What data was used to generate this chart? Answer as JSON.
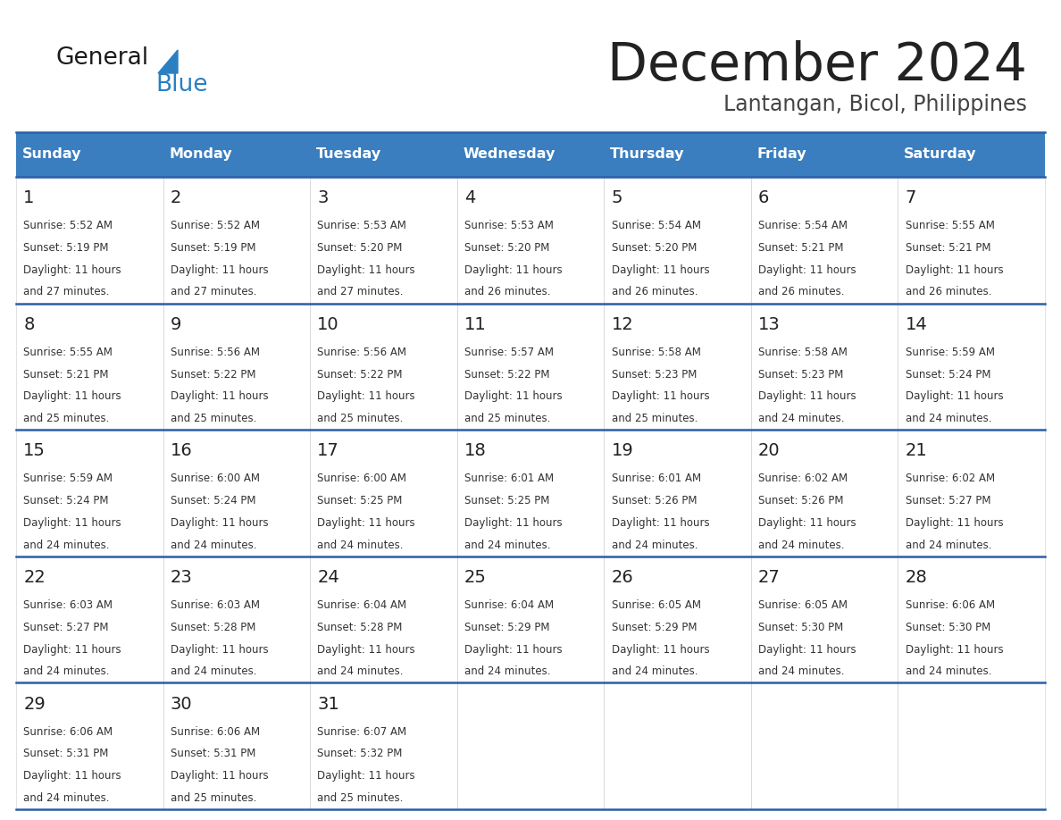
{
  "title": "December 2024",
  "subtitle": "Lantangan, Bicol, Philippines",
  "header_color": "#3a7ebf",
  "header_text_color": "#ffffff",
  "days_of_week": [
    "Sunday",
    "Monday",
    "Tuesday",
    "Wednesday",
    "Thursday",
    "Friday",
    "Saturday"
  ],
  "background_color": "#ffffff",
  "cell_bg_color": "#ffffff",
  "row_line_color": "#2a5fa5",
  "title_color": "#222222",
  "subtitle_color": "#444444",
  "logo_general_color": "#1a1a1a",
  "logo_blue_color": "#2a7fc2",
  "calendar": [
    [
      {
        "day": 1,
        "sunrise": "5:52 AM",
        "sunset": "5:19 PM",
        "daylight": "11 hours and 27 minutes."
      },
      {
        "day": 2,
        "sunrise": "5:52 AM",
        "sunset": "5:19 PM",
        "daylight": "11 hours and 27 minutes."
      },
      {
        "day": 3,
        "sunrise": "5:53 AM",
        "sunset": "5:20 PM",
        "daylight": "11 hours and 27 minutes."
      },
      {
        "day": 4,
        "sunrise": "5:53 AM",
        "sunset": "5:20 PM",
        "daylight": "11 hours and 26 minutes."
      },
      {
        "day": 5,
        "sunrise": "5:54 AM",
        "sunset": "5:20 PM",
        "daylight": "11 hours and 26 minutes."
      },
      {
        "day": 6,
        "sunrise": "5:54 AM",
        "sunset": "5:21 PM",
        "daylight": "11 hours and 26 minutes."
      },
      {
        "day": 7,
        "sunrise": "5:55 AM",
        "sunset": "5:21 PM",
        "daylight": "11 hours and 26 minutes."
      }
    ],
    [
      {
        "day": 8,
        "sunrise": "5:55 AM",
        "sunset": "5:21 PM",
        "daylight": "11 hours and 25 minutes."
      },
      {
        "day": 9,
        "sunrise": "5:56 AM",
        "sunset": "5:22 PM",
        "daylight": "11 hours and 25 minutes."
      },
      {
        "day": 10,
        "sunrise": "5:56 AM",
        "sunset": "5:22 PM",
        "daylight": "11 hours and 25 minutes."
      },
      {
        "day": 11,
        "sunrise": "5:57 AM",
        "sunset": "5:22 PM",
        "daylight": "11 hours and 25 minutes."
      },
      {
        "day": 12,
        "sunrise": "5:58 AM",
        "sunset": "5:23 PM",
        "daylight": "11 hours and 25 minutes."
      },
      {
        "day": 13,
        "sunrise": "5:58 AM",
        "sunset": "5:23 PM",
        "daylight": "11 hours and 24 minutes."
      },
      {
        "day": 14,
        "sunrise": "5:59 AM",
        "sunset": "5:24 PM",
        "daylight": "11 hours and 24 minutes."
      }
    ],
    [
      {
        "day": 15,
        "sunrise": "5:59 AM",
        "sunset": "5:24 PM",
        "daylight": "11 hours and 24 minutes."
      },
      {
        "day": 16,
        "sunrise": "6:00 AM",
        "sunset": "5:24 PM",
        "daylight": "11 hours and 24 minutes."
      },
      {
        "day": 17,
        "sunrise": "6:00 AM",
        "sunset": "5:25 PM",
        "daylight": "11 hours and 24 minutes."
      },
      {
        "day": 18,
        "sunrise": "6:01 AM",
        "sunset": "5:25 PM",
        "daylight": "11 hours and 24 minutes."
      },
      {
        "day": 19,
        "sunrise": "6:01 AM",
        "sunset": "5:26 PM",
        "daylight": "11 hours and 24 minutes."
      },
      {
        "day": 20,
        "sunrise": "6:02 AM",
        "sunset": "5:26 PM",
        "daylight": "11 hours and 24 minutes."
      },
      {
        "day": 21,
        "sunrise": "6:02 AM",
        "sunset": "5:27 PM",
        "daylight": "11 hours and 24 minutes."
      }
    ],
    [
      {
        "day": 22,
        "sunrise": "6:03 AM",
        "sunset": "5:27 PM",
        "daylight": "11 hours and 24 minutes."
      },
      {
        "day": 23,
        "sunrise": "6:03 AM",
        "sunset": "5:28 PM",
        "daylight": "11 hours and 24 minutes."
      },
      {
        "day": 24,
        "sunrise": "6:04 AM",
        "sunset": "5:28 PM",
        "daylight": "11 hours and 24 minutes."
      },
      {
        "day": 25,
        "sunrise": "6:04 AM",
        "sunset": "5:29 PM",
        "daylight": "11 hours and 24 minutes."
      },
      {
        "day": 26,
        "sunrise": "6:05 AM",
        "sunset": "5:29 PM",
        "daylight": "11 hours and 24 minutes."
      },
      {
        "day": 27,
        "sunrise": "6:05 AM",
        "sunset": "5:30 PM",
        "daylight": "11 hours and 24 minutes."
      },
      {
        "day": 28,
        "sunrise": "6:06 AM",
        "sunset": "5:30 PM",
        "daylight": "11 hours and 24 minutes."
      }
    ],
    [
      {
        "day": 29,
        "sunrise": "6:06 AM",
        "sunset": "5:31 PM",
        "daylight": "11 hours and 24 minutes."
      },
      {
        "day": 30,
        "sunrise": "6:06 AM",
        "sunset": "5:31 PM",
        "daylight": "11 hours and 25 minutes."
      },
      {
        "day": 31,
        "sunrise": "6:07 AM",
        "sunset": "5:32 PM",
        "daylight": "11 hours and 25 minutes."
      },
      null,
      null,
      null,
      null
    ]
  ]
}
